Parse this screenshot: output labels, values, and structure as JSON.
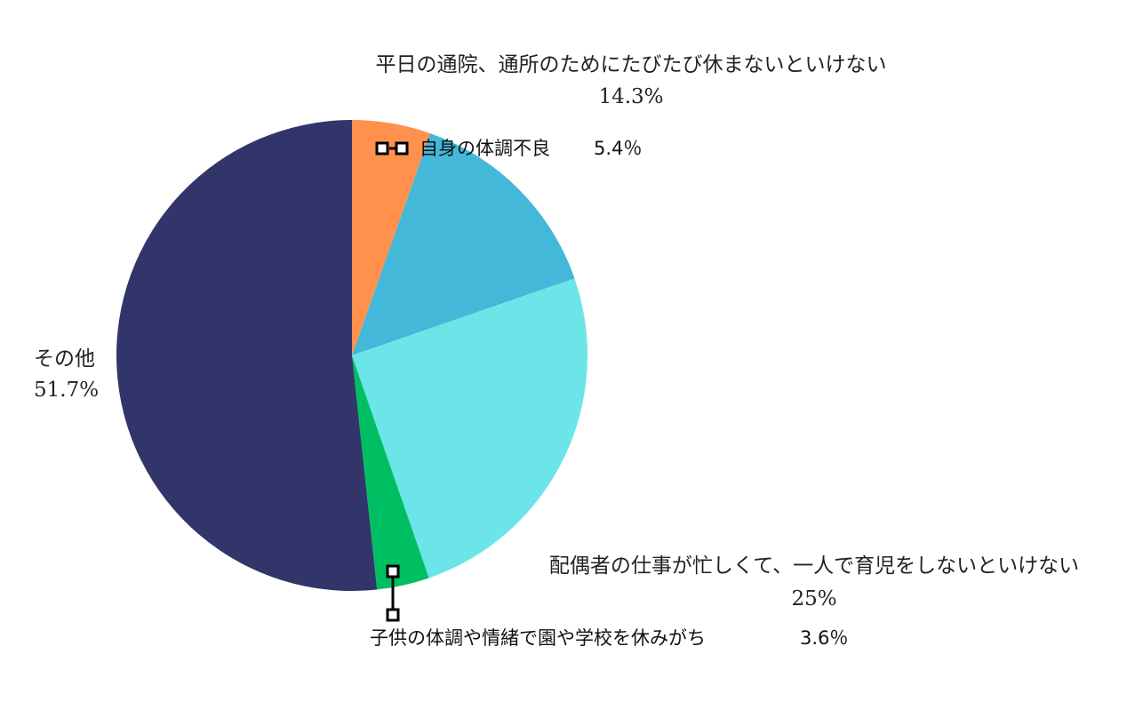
{
  "chart_data": {
    "type": "pie",
    "title": "",
    "start_angle_deg": 0,
    "direction": "clockwise",
    "slices": [
      {
        "label": "自身の体調不良",
        "value_text": "5.4％",
        "value": 5.4,
        "color": "#FF914D"
      },
      {
        "label": "平日の通院、通所のためにたびたび休まないといけない",
        "value_text": "14.3%",
        "value": 14.3,
        "color": "#44B8D8"
      },
      {
        "label": "配偶者の仕事が忙しくて、一人で育児をしないといけない",
        "value_text": "25%",
        "value": 25,
        "color": "#6CE5E8"
      },
      {
        "label": "子供の体調や情緒で園や学校を休みがち",
        "value_text": "3.6％",
        "value": 3.6,
        "color": "#00BF63"
      },
      {
        "label": "その他",
        "value_text": "51.7%",
        "value": 51.7,
        "color": "#313569"
      }
    ]
  }
}
